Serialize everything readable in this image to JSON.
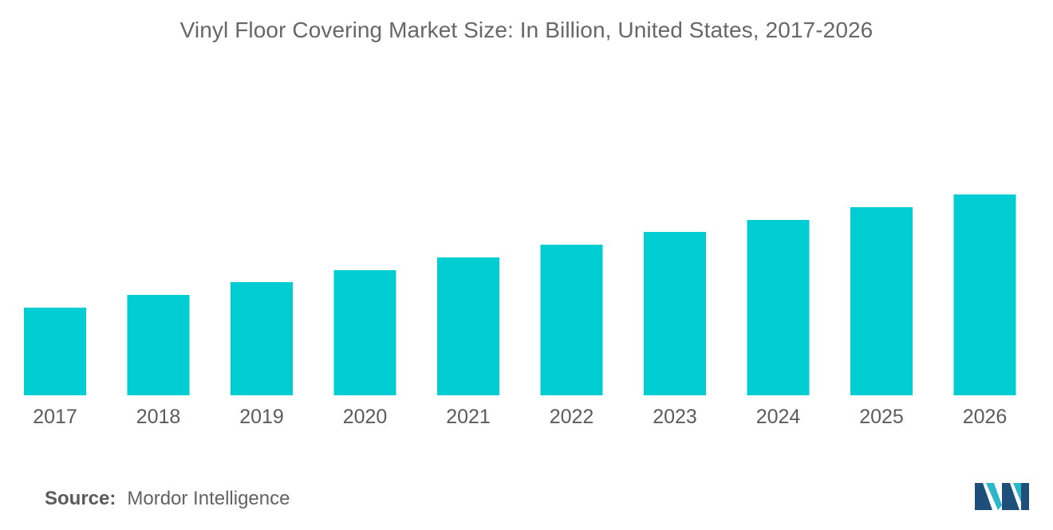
{
  "chart_data": {
    "type": "bar",
    "title": "Vinyl Floor Covering Market Size: In Billion, United States, 2017-2026",
    "categories": [
      "2017",
      "2018",
      "2019",
      "2020",
      "2021",
      "2022",
      "2023",
      "2024",
      "2025",
      "2026"
    ],
    "values": [
      110,
      126,
      142,
      157,
      173,
      189,
      205,
      220,
      236,
      252
    ],
    "xlabel": "",
    "ylabel": "",
    "ylim": [
      0,
      252
    ],
    "grid": false,
    "legend": "none",
    "bar_color": "#00cdd1"
  },
  "source": {
    "label": "Source:",
    "text": "Mordor Intelligence"
  },
  "logo": {
    "icon": "mordor-intelligence-logo-icon",
    "colors": [
      "#1e4f7a",
      "#2db6c9"
    ]
  }
}
